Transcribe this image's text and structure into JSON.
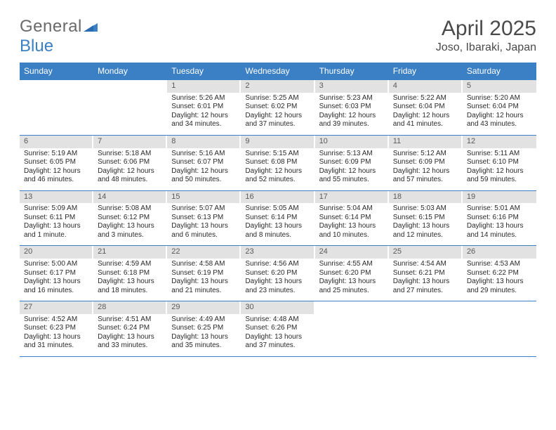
{
  "logo": {
    "part1": "General",
    "part2": "Blue"
  },
  "title": "April 2025",
  "location": "Joso, Ibaraki, Japan",
  "colors": {
    "header_bg": "#3b7fc4",
    "daynum_bg": "#e2e2e2",
    "text": "#2a2a2a",
    "title_text": "#4a4a4a",
    "logo_grey": "#6a6a6a"
  },
  "day_headers": [
    "Sunday",
    "Monday",
    "Tuesday",
    "Wednesday",
    "Thursday",
    "Friday",
    "Saturday"
  ],
  "weeks": [
    [
      {
        "empty": true
      },
      {
        "empty": true
      },
      {
        "day": "1",
        "sunrise": "Sunrise: 5:26 AM",
        "sunset": "Sunset: 6:01 PM",
        "daylight": "Daylight: 12 hours and 34 minutes."
      },
      {
        "day": "2",
        "sunrise": "Sunrise: 5:25 AM",
        "sunset": "Sunset: 6:02 PM",
        "daylight": "Daylight: 12 hours and 37 minutes."
      },
      {
        "day": "3",
        "sunrise": "Sunrise: 5:23 AM",
        "sunset": "Sunset: 6:03 PM",
        "daylight": "Daylight: 12 hours and 39 minutes."
      },
      {
        "day": "4",
        "sunrise": "Sunrise: 5:22 AM",
        "sunset": "Sunset: 6:04 PM",
        "daylight": "Daylight: 12 hours and 41 minutes."
      },
      {
        "day": "5",
        "sunrise": "Sunrise: 5:20 AM",
        "sunset": "Sunset: 6:04 PM",
        "daylight": "Daylight: 12 hours and 43 minutes."
      }
    ],
    [
      {
        "day": "6",
        "sunrise": "Sunrise: 5:19 AM",
        "sunset": "Sunset: 6:05 PM",
        "daylight": "Daylight: 12 hours and 46 minutes."
      },
      {
        "day": "7",
        "sunrise": "Sunrise: 5:18 AM",
        "sunset": "Sunset: 6:06 PM",
        "daylight": "Daylight: 12 hours and 48 minutes."
      },
      {
        "day": "8",
        "sunrise": "Sunrise: 5:16 AM",
        "sunset": "Sunset: 6:07 PM",
        "daylight": "Daylight: 12 hours and 50 minutes."
      },
      {
        "day": "9",
        "sunrise": "Sunrise: 5:15 AM",
        "sunset": "Sunset: 6:08 PM",
        "daylight": "Daylight: 12 hours and 52 minutes."
      },
      {
        "day": "10",
        "sunrise": "Sunrise: 5:13 AM",
        "sunset": "Sunset: 6:09 PM",
        "daylight": "Daylight: 12 hours and 55 minutes."
      },
      {
        "day": "11",
        "sunrise": "Sunrise: 5:12 AM",
        "sunset": "Sunset: 6:09 PM",
        "daylight": "Daylight: 12 hours and 57 minutes."
      },
      {
        "day": "12",
        "sunrise": "Sunrise: 5:11 AM",
        "sunset": "Sunset: 6:10 PM",
        "daylight": "Daylight: 12 hours and 59 minutes."
      }
    ],
    [
      {
        "day": "13",
        "sunrise": "Sunrise: 5:09 AM",
        "sunset": "Sunset: 6:11 PM",
        "daylight": "Daylight: 13 hours and 1 minute."
      },
      {
        "day": "14",
        "sunrise": "Sunrise: 5:08 AM",
        "sunset": "Sunset: 6:12 PM",
        "daylight": "Daylight: 13 hours and 3 minutes."
      },
      {
        "day": "15",
        "sunrise": "Sunrise: 5:07 AM",
        "sunset": "Sunset: 6:13 PM",
        "daylight": "Daylight: 13 hours and 6 minutes."
      },
      {
        "day": "16",
        "sunrise": "Sunrise: 5:05 AM",
        "sunset": "Sunset: 6:14 PM",
        "daylight": "Daylight: 13 hours and 8 minutes."
      },
      {
        "day": "17",
        "sunrise": "Sunrise: 5:04 AM",
        "sunset": "Sunset: 6:14 PM",
        "daylight": "Daylight: 13 hours and 10 minutes."
      },
      {
        "day": "18",
        "sunrise": "Sunrise: 5:03 AM",
        "sunset": "Sunset: 6:15 PM",
        "daylight": "Daylight: 13 hours and 12 minutes."
      },
      {
        "day": "19",
        "sunrise": "Sunrise: 5:01 AM",
        "sunset": "Sunset: 6:16 PM",
        "daylight": "Daylight: 13 hours and 14 minutes."
      }
    ],
    [
      {
        "day": "20",
        "sunrise": "Sunrise: 5:00 AM",
        "sunset": "Sunset: 6:17 PM",
        "daylight": "Daylight: 13 hours and 16 minutes."
      },
      {
        "day": "21",
        "sunrise": "Sunrise: 4:59 AM",
        "sunset": "Sunset: 6:18 PM",
        "daylight": "Daylight: 13 hours and 18 minutes."
      },
      {
        "day": "22",
        "sunrise": "Sunrise: 4:58 AM",
        "sunset": "Sunset: 6:19 PM",
        "daylight": "Daylight: 13 hours and 21 minutes."
      },
      {
        "day": "23",
        "sunrise": "Sunrise: 4:56 AM",
        "sunset": "Sunset: 6:20 PM",
        "daylight": "Daylight: 13 hours and 23 minutes."
      },
      {
        "day": "24",
        "sunrise": "Sunrise: 4:55 AM",
        "sunset": "Sunset: 6:20 PM",
        "daylight": "Daylight: 13 hours and 25 minutes."
      },
      {
        "day": "25",
        "sunrise": "Sunrise: 4:54 AM",
        "sunset": "Sunset: 6:21 PM",
        "daylight": "Daylight: 13 hours and 27 minutes."
      },
      {
        "day": "26",
        "sunrise": "Sunrise: 4:53 AM",
        "sunset": "Sunset: 6:22 PM",
        "daylight": "Daylight: 13 hours and 29 minutes."
      }
    ],
    [
      {
        "day": "27",
        "sunrise": "Sunrise: 4:52 AM",
        "sunset": "Sunset: 6:23 PM",
        "daylight": "Daylight: 13 hours and 31 minutes."
      },
      {
        "day": "28",
        "sunrise": "Sunrise: 4:51 AM",
        "sunset": "Sunset: 6:24 PM",
        "daylight": "Daylight: 13 hours and 33 minutes."
      },
      {
        "day": "29",
        "sunrise": "Sunrise: 4:49 AM",
        "sunset": "Sunset: 6:25 PM",
        "daylight": "Daylight: 13 hours and 35 minutes."
      },
      {
        "day": "30",
        "sunrise": "Sunrise: 4:48 AM",
        "sunset": "Sunset: 6:26 PM",
        "daylight": "Daylight: 13 hours and 37 minutes."
      },
      {
        "empty": true
      },
      {
        "empty": true
      },
      {
        "empty": true
      }
    ]
  ]
}
